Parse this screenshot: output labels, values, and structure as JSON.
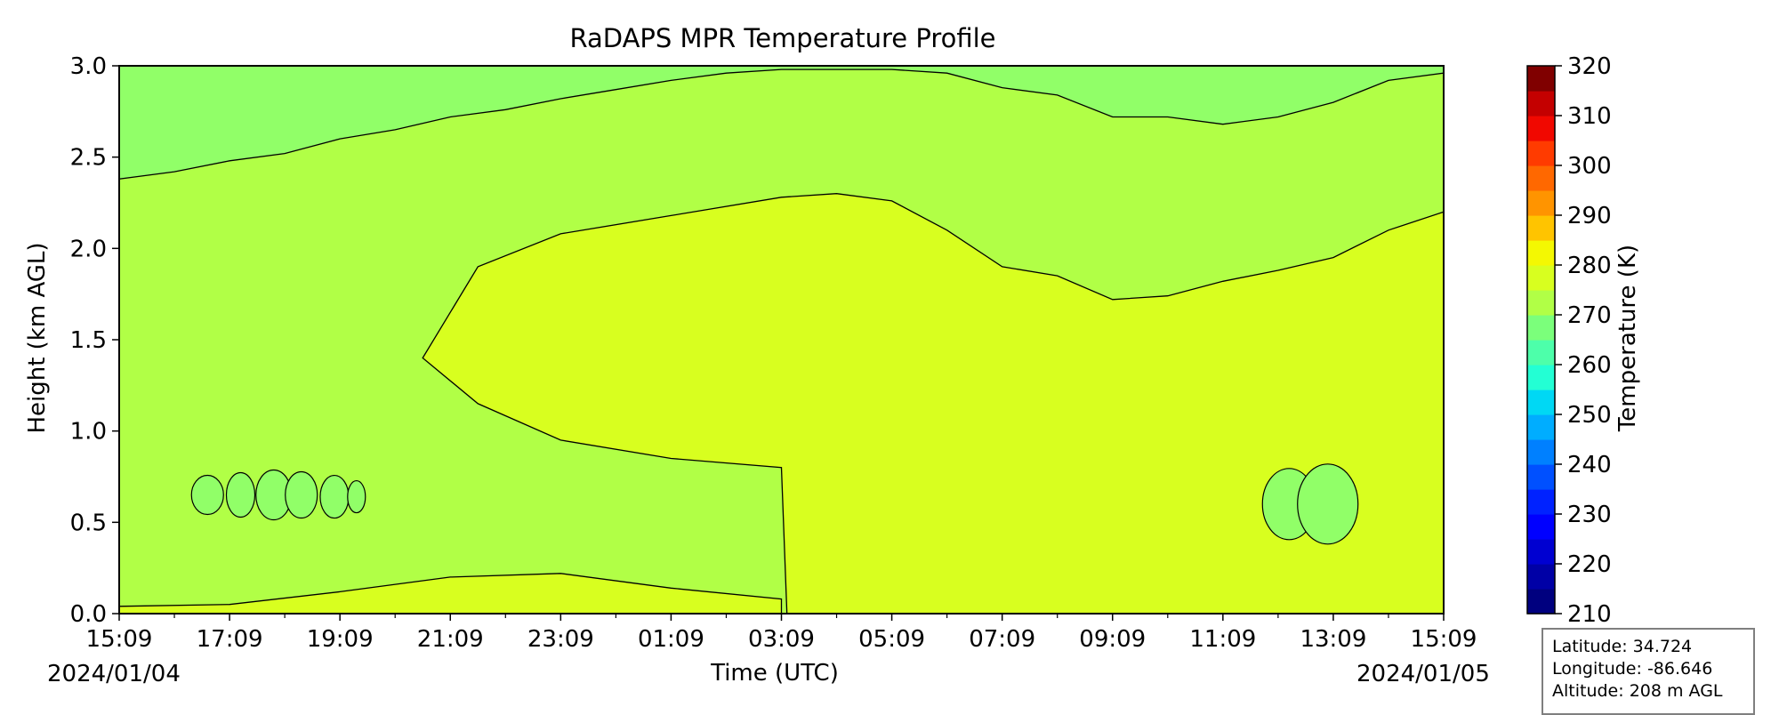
{
  "chart_data": {
    "type": "heatmap",
    "title": "RaDAPS MPR Temperature Profile",
    "xlabel": "Time (UTC)",
    "ylabel": "Height (km AGL)",
    "x_tick_labels": [
      "15:09",
      "17:09",
      "19:09",
      "21:09",
      "23:09",
      "01:09",
      "03:09",
      "05:09",
      "07:09",
      "09:09",
      "11:09",
      "13:09",
      "15:09"
    ],
    "x_dates": [
      "2024/01/04",
      "2024/01/05"
    ],
    "y_ticks": [
      0.0,
      0.5,
      1.0,
      1.5,
      2.0,
      2.5,
      3.0
    ],
    "y_tick_labels": [
      "0.0",
      "0.5",
      "1.0",
      "1.5",
      "2.0",
      "2.5",
      "3.0"
    ],
    "ylim": [
      0,
      3
    ],
    "x_hours_range": [
      0,
      24
    ],
    "colorbar": {
      "label": "Temperature (K)",
      "range": [
        210,
        320
      ],
      "tick_values": [
        210,
        220,
        230,
        240,
        250,
        260,
        270,
        280,
        290,
        300,
        310,
        320
      ],
      "tick_labels": [
        "210",
        "220",
        "230",
        "240",
        "250",
        "260",
        "270",
        "280",
        "290",
        "300",
        "310",
        "320"
      ],
      "bins": [
        {
          "from": 210,
          "to": 215,
          "color": "#00007f"
        },
        {
          "from": 215,
          "to": 220,
          "color": "#0000a6"
        },
        {
          "from": 220,
          "to": 225,
          "color": "#0000d1"
        },
        {
          "from": 225,
          "to": 230,
          "color": "#0000ff"
        },
        {
          "from": 230,
          "to": 235,
          "color": "#0022ff"
        },
        {
          "from": 235,
          "to": 240,
          "color": "#0050ff"
        },
        {
          "from": 240,
          "to": 245,
          "color": "#0080ff"
        },
        {
          "from": 245,
          "to": 250,
          "color": "#00adff"
        },
        {
          "from": 250,
          "to": 255,
          "color": "#00d8f4"
        },
        {
          "from": 255,
          "to": 260,
          "color": "#23ffd4"
        },
        {
          "from": 260,
          "to": 265,
          "color": "#4dffaa"
        },
        {
          "from": 265,
          "to": 270,
          "color": "#7bff7b"
        },
        {
          "from": 270,
          "to": 275,
          "color": "#b1ff46"
        },
        {
          "from": 275,
          "to": 280,
          "color": "#d8ff1f"
        },
        {
          "from": 280,
          "to": 285,
          "color": "#f4f802"
        },
        {
          "from": 285,
          "to": 290,
          "color": "#ffc400"
        },
        {
          "from": 290,
          "to": 295,
          "color": "#ff9400"
        },
        {
          "from": 295,
          "to": 300,
          "color": "#ff6800"
        },
        {
          "from": 300,
          "to": 305,
          "color": "#ff3b00"
        },
        {
          "from": 305,
          "to": 310,
          "color": "#f10800"
        },
        {
          "from": 310,
          "to": 315,
          "color": "#c40000"
        },
        {
          "from": 315,
          "to": 320,
          "color": "#800000"
        }
      ]
    },
    "regions": [
      {
        "name": "265-270 K upper layer",
        "color": "#91ff68",
        "boundary_km": [
          [
            0,
            2.38
          ],
          [
            1,
            2.42
          ],
          [
            2,
            2.48
          ],
          [
            3,
            2.52
          ],
          [
            4,
            2.6
          ],
          [
            5,
            2.65
          ],
          [
            6,
            2.72
          ],
          [
            7,
            2.76
          ],
          [
            8,
            2.82
          ],
          [
            9,
            2.87
          ],
          [
            10,
            2.92
          ],
          [
            11,
            2.96
          ],
          [
            12,
            2.98
          ],
          [
            13,
            2.98
          ],
          [
            14,
            2.98
          ],
          [
            15,
            2.96
          ],
          [
            16,
            2.88
          ],
          [
            17,
            2.84
          ],
          [
            18,
            2.72
          ],
          [
            19,
            2.72
          ],
          [
            20,
            2.68
          ],
          [
            21,
            2.72
          ],
          [
            22,
            2.8
          ],
          [
            23,
            2.92
          ],
          [
            24,
            2.96
          ]
        ]
      },
      {
        "name": "275-280 K warm layer",
        "color": "#d8ff1f",
        "top_km": [
          [
            5.5,
            1.4
          ],
          [
            6.5,
            1.9
          ],
          [
            8,
            2.08
          ],
          [
            10,
            2.18
          ],
          [
            12,
            2.28
          ],
          [
            13,
            2.3
          ],
          [
            14,
            2.26
          ],
          [
            15,
            2.1
          ],
          [
            16,
            1.9
          ],
          [
            17,
            1.85
          ],
          [
            18,
            1.72
          ],
          [
            19,
            1.74
          ],
          [
            20,
            1.82
          ],
          [
            21,
            1.88
          ],
          [
            22,
            1.95
          ],
          [
            23,
            2.1
          ],
          [
            24,
            2.2
          ]
        ],
        "bottom_km": [
          [
            5.5,
            1.4
          ],
          [
            6.5,
            1.15
          ],
          [
            8,
            0.95
          ],
          [
            10,
            0.85
          ],
          [
            12,
            0.8
          ],
          [
            12.1,
            0.0
          ],
          [
            24,
            0.0
          ]
        ]
      },
      {
        "name": "surface warm layer",
        "color": "#d8ff1f",
        "top_km": [
          [
            0,
            0.04
          ],
          [
            2,
            0.05
          ],
          [
            4,
            0.12
          ],
          [
            6,
            0.2
          ],
          [
            8,
            0.22
          ],
          [
            10,
            0.14
          ],
          [
            12,
            0.08
          ]
        ]
      }
    ],
    "contours_K": [
      270,
      275
    ]
  },
  "info": {
    "latitude": "Latitude: 34.724",
    "longitude": "Longitude: -86.646",
    "altitude": "Altitude: 208 m AGL"
  }
}
